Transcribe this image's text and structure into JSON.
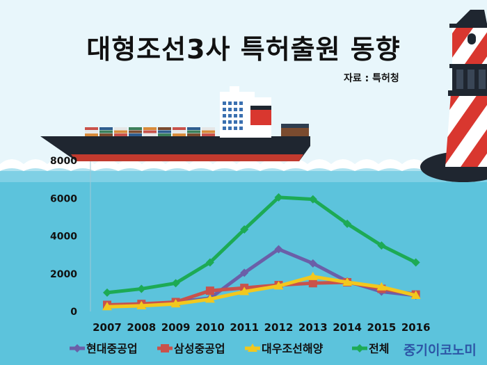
{
  "header": {
    "title": "대형조선3사 특허출원 동향",
    "source": "자료 : 특허청"
  },
  "brand": "중기이코노미",
  "chart_data": {
    "type": "line",
    "title": "대형조선3사 특허출원 동향",
    "categories": [
      "2007",
      "2008",
      "2009",
      "2010",
      "2011",
      "2012",
      "2013",
      "2014",
      "2015",
      "2016"
    ],
    "y_ticks": [
      "0",
      "2000",
      "4000",
      "6000",
      "8000"
    ],
    "ylim": [
      0,
      8000
    ],
    "legend_position": "bottom",
    "series": [
      {
        "name": "현대중공업",
        "color": "#6b5fa8",
        "marker": "diamond",
        "values": [
          300,
          350,
          500,
          700,
          2050,
          3300,
          2550,
          1600,
          1050,
          850
        ]
      },
      {
        "name": "삼성중공업",
        "color": "#c9524b",
        "marker": "square",
        "values": [
          350,
          400,
          500,
          1100,
          1250,
          1400,
          1500,
          1550,
          1200,
          900
        ]
      },
      {
        "name": "대우조선해양",
        "color": "#f2c81e",
        "marker": "triangle",
        "values": [
          250,
          300,
          400,
          650,
          1050,
          1350,
          1850,
          1550,
          1300,
          850
        ]
      },
      {
        "name": "전체",
        "color": "#1daa55",
        "marker": "diamond",
        "values": [
          1000,
          1200,
          1500,
          2600,
          4350,
          6050,
          5950,
          4650,
          3500,
          2600
        ]
      }
    ]
  }
}
